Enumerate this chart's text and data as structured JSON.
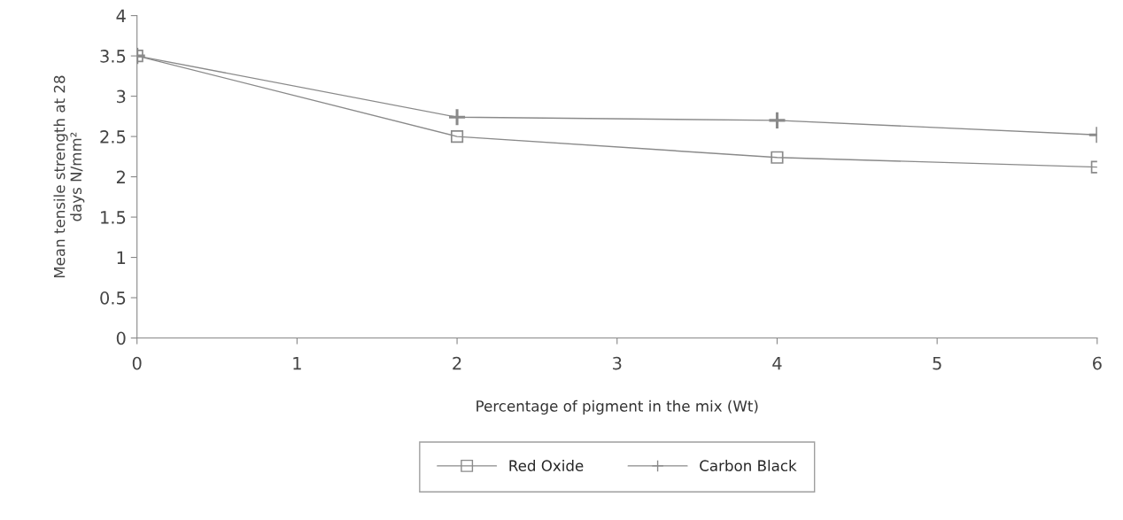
{
  "chart_data": {
    "type": "line",
    "xlabel": "Percentage of pigment in the mix (Wt)",
    "ylabel": "Mean tensile strength at 28\ndays N/mm²",
    "x": [
      0,
      2,
      4,
      6
    ],
    "series": [
      {
        "name": "Red Oxide",
        "color": "#8a8a8a",
        "marker": "square",
        "values": [
          3.5,
          2.5,
          2.24,
          2.12
        ]
      },
      {
        "name": "Carbon Black",
        "color": "#8a8a8a",
        "marker": "cross",
        "values": [
          3.5,
          2.74,
          2.7,
          2.52
        ]
      }
    ],
    "xlim": [
      0,
      6
    ],
    "xticks": [
      0,
      1,
      2,
      3,
      4,
      5,
      6
    ],
    "ylim": [
      0,
      4
    ],
    "yticks": [
      0,
      0.5,
      1,
      1.5,
      2,
      2.5,
      3,
      3.5,
      4
    ],
    "grid": false,
    "legend": "bottom",
    "line_style": "solid"
  }
}
